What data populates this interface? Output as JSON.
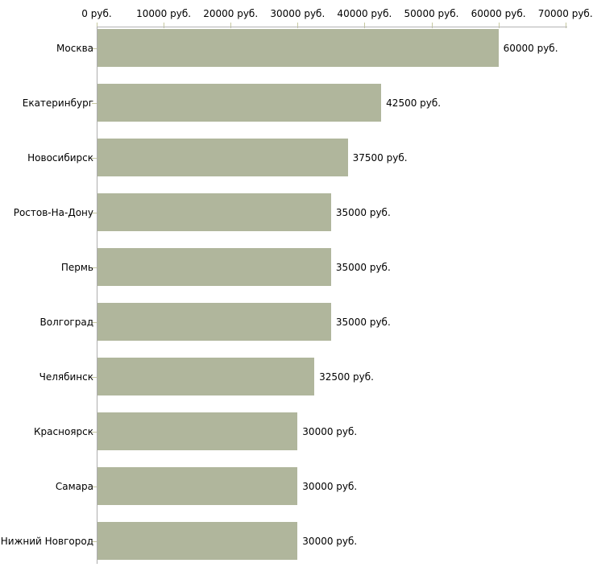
{
  "chart_data": {
    "type": "bar",
    "orientation": "horizontal",
    "title": "",
    "unit": "руб.",
    "categories": [
      "Москва",
      "Екатеринбург",
      "Новосибирск",
      "Ростов-На-Дону",
      "Пермь",
      "Волгоград",
      "Челябинск",
      "Красноярск",
      "Самара",
      "Нижний Новгород"
    ],
    "values": [
      60000,
      42500,
      37500,
      35000,
      35000,
      35000,
      32500,
      30000,
      30000,
      30000
    ],
    "value_labels": [
      "60000 руб.",
      "42500 руб.",
      "37500 руб.",
      "35000 руб.",
      "35000 руб.",
      "35000 руб.",
      "32500 руб.",
      "30000 руб.",
      "30000 руб.",
      "30000 руб."
    ],
    "x_axis": {
      "position": "top",
      "min": 0,
      "max": 70000,
      "tick_interval": 10000,
      "tick_values": [
        0,
        10000,
        20000,
        30000,
        40000,
        50000,
        60000,
        70000
      ],
      "tick_labels": [
        "0 руб.",
        "10000 руб.",
        "20000 руб.",
        "30000 руб.",
        "40000 руб.",
        "50000 руб.",
        "60000 руб.",
        "70000 руб."
      ]
    },
    "legend": null,
    "grid": false,
    "colors": {
      "bar": "#b0b69c",
      "axis_line": "#b3b3b3",
      "tick_mark": "#c6c8a0",
      "label_text": "#000000",
      "background": "#ffffff"
    }
  }
}
